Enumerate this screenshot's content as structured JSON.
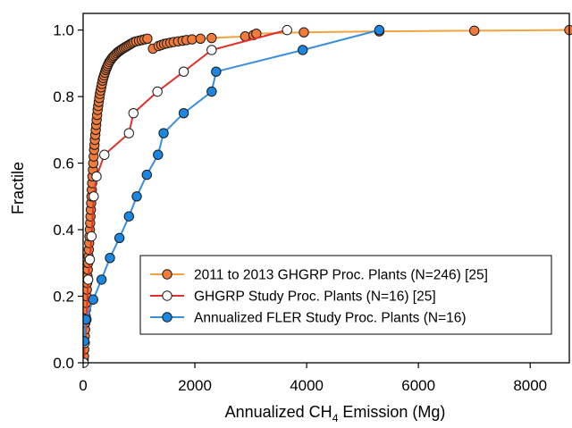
{
  "chart_data": {
    "type": "line",
    "xlabel": "Annualized CH",
    "xlabel_sub": "4",
    "xlabel_tail": " Emission (Mg)",
    "ylabel": "Fractile",
    "xlim": [
      0,
      8700
    ],
    "ylim": [
      0,
      1.05
    ],
    "x_ticks": [
      0,
      2000,
      4000,
      6000,
      8000
    ],
    "x_tick_labels": [
      "0",
      "2000",
      "4000",
      "6000",
      "8000"
    ],
    "y_ticks": [
      0,
      0.2,
      0.4,
      0.6,
      0.8,
      1.0
    ],
    "y_tick_labels": [
      "0.0",
      "0.2",
      "0.4",
      "0.6",
      "0.8",
      "1.0"
    ],
    "legend_position": "bottom-right",
    "series": [
      {
        "name": "2011 to 2013 GHGRP Proc. Plants (N=246) [25]",
        "line_color": "#f4a23f",
        "marker_fill": "#f07b3a",
        "marker_stroke": "#1a1a1a",
        "x": [
          5,
          10,
          15,
          20,
          25,
          30,
          35,
          40,
          45,
          50,
          55,
          60,
          66,
          72,
          78,
          84,
          90,
          96,
          102,
          108,
          114,
          120,
          126,
          132,
          138,
          144,
          150,
          156,
          162,
          168,
          175,
          182,
          189,
          196,
          203,
          210,
          218,
          226,
          234,
          242,
          250,
          260,
          270,
          280,
          290,
          300,
          312,
          324,
          336,
          348,
          360,
          375,
          390,
          405,
          420,
          435,
          450,
          470,
          490,
          510,
          530,
          550,
          575,
          600,
          625,
          650,
          675,
          700,
          730,
          760,
          790,
          820,
          850,
          880,
          910,
          950,
          1000,
          1050,
          1100,
          1150,
          1250,
          1350,
          1400,
          1450,
          1500,
          1560,
          1620,
          1700,
          1780,
          1850,
          1950,
          2100,
          2300,
          2900,
          3050,
          3100,
          3950,
          5300,
          7000,
          8700
        ],
        "y": [
          0.0,
          0.01,
          0.02,
          0.04,
          0.06,
          0.08,
          0.1,
          0.12,
          0.14,
          0.16,
          0.18,
          0.2,
          0.22,
          0.24,
          0.26,
          0.28,
          0.3,
          0.32,
          0.34,
          0.36,
          0.38,
          0.4,
          0.42,
          0.44,
          0.46,
          0.48,
          0.5,
          0.52,
          0.54,
          0.56,
          0.58,
          0.6,
          0.62,
          0.64,
          0.655,
          0.67,
          0.685,
          0.7,
          0.715,
          0.73,
          0.745,
          0.76,
          0.772,
          0.784,
          0.796,
          0.808,
          0.818,
          0.828,
          0.838,
          0.848,
          0.856,
          0.864,
          0.872,
          0.88,
          0.886,
          0.892,
          0.898,
          0.904,
          0.909,
          0.914,
          0.918,
          0.922,
          0.926,
          0.93,
          0.934,
          0.937,
          0.94,
          0.943,
          0.946,
          0.949,
          0.952,
          0.955,
          0.958,
          0.961,
          0.964,
          0.966,
          0.968,
          0.97,
          0.972,
          0.974,
          0.944,
          0.952,
          0.955,
          0.958,
          0.96,
          0.962,
          0.964,
          0.966,
          0.968,
          0.97,
          0.972,
          0.974,
          0.976,
          0.981,
          0.985,
          0.989,
          0.993,
          0.996,
          0.998,
          1.0
        ]
      },
      {
        "name": "GHGRP Study Proc. Plants (N=16) [25]",
        "line_color": "#e0302a",
        "marker_fill": "#ffffff",
        "marker_stroke": "#1a1a1a",
        "x": [
          10,
          30,
          60,
          90,
          120,
          150,
          190,
          240,
          380,
          820,
          900,
          1330,
          1800,
          2300,
          3650
        ],
        "y": [
          0.0,
          0.06,
          0.13,
          0.25,
          0.31,
          0.38,
          0.5,
          0.56,
          0.625,
          0.69,
          0.75,
          0.815,
          0.875,
          0.94,
          1.0
        ]
      },
      {
        "name": "Annualized FLER Study Proc. Plants (N=16)",
        "line_color": "#3a8fdc",
        "marker_fill": "#1c87e0",
        "marker_stroke": "#1a1a1a",
        "x": [
          20,
          50,
          180,
          330,
          480,
          650,
          820,
          960,
          1140,
          1340,
          1440,
          1800,
          2300,
          2380,
          3930,
          5300
        ],
        "y": [
          0.065,
          0.13,
          0.19,
          0.25,
          0.315,
          0.375,
          0.44,
          0.5,
          0.565,
          0.625,
          0.69,
          0.75,
          0.815,
          0.875,
          0.94,
          1.0
        ]
      }
    ]
  }
}
